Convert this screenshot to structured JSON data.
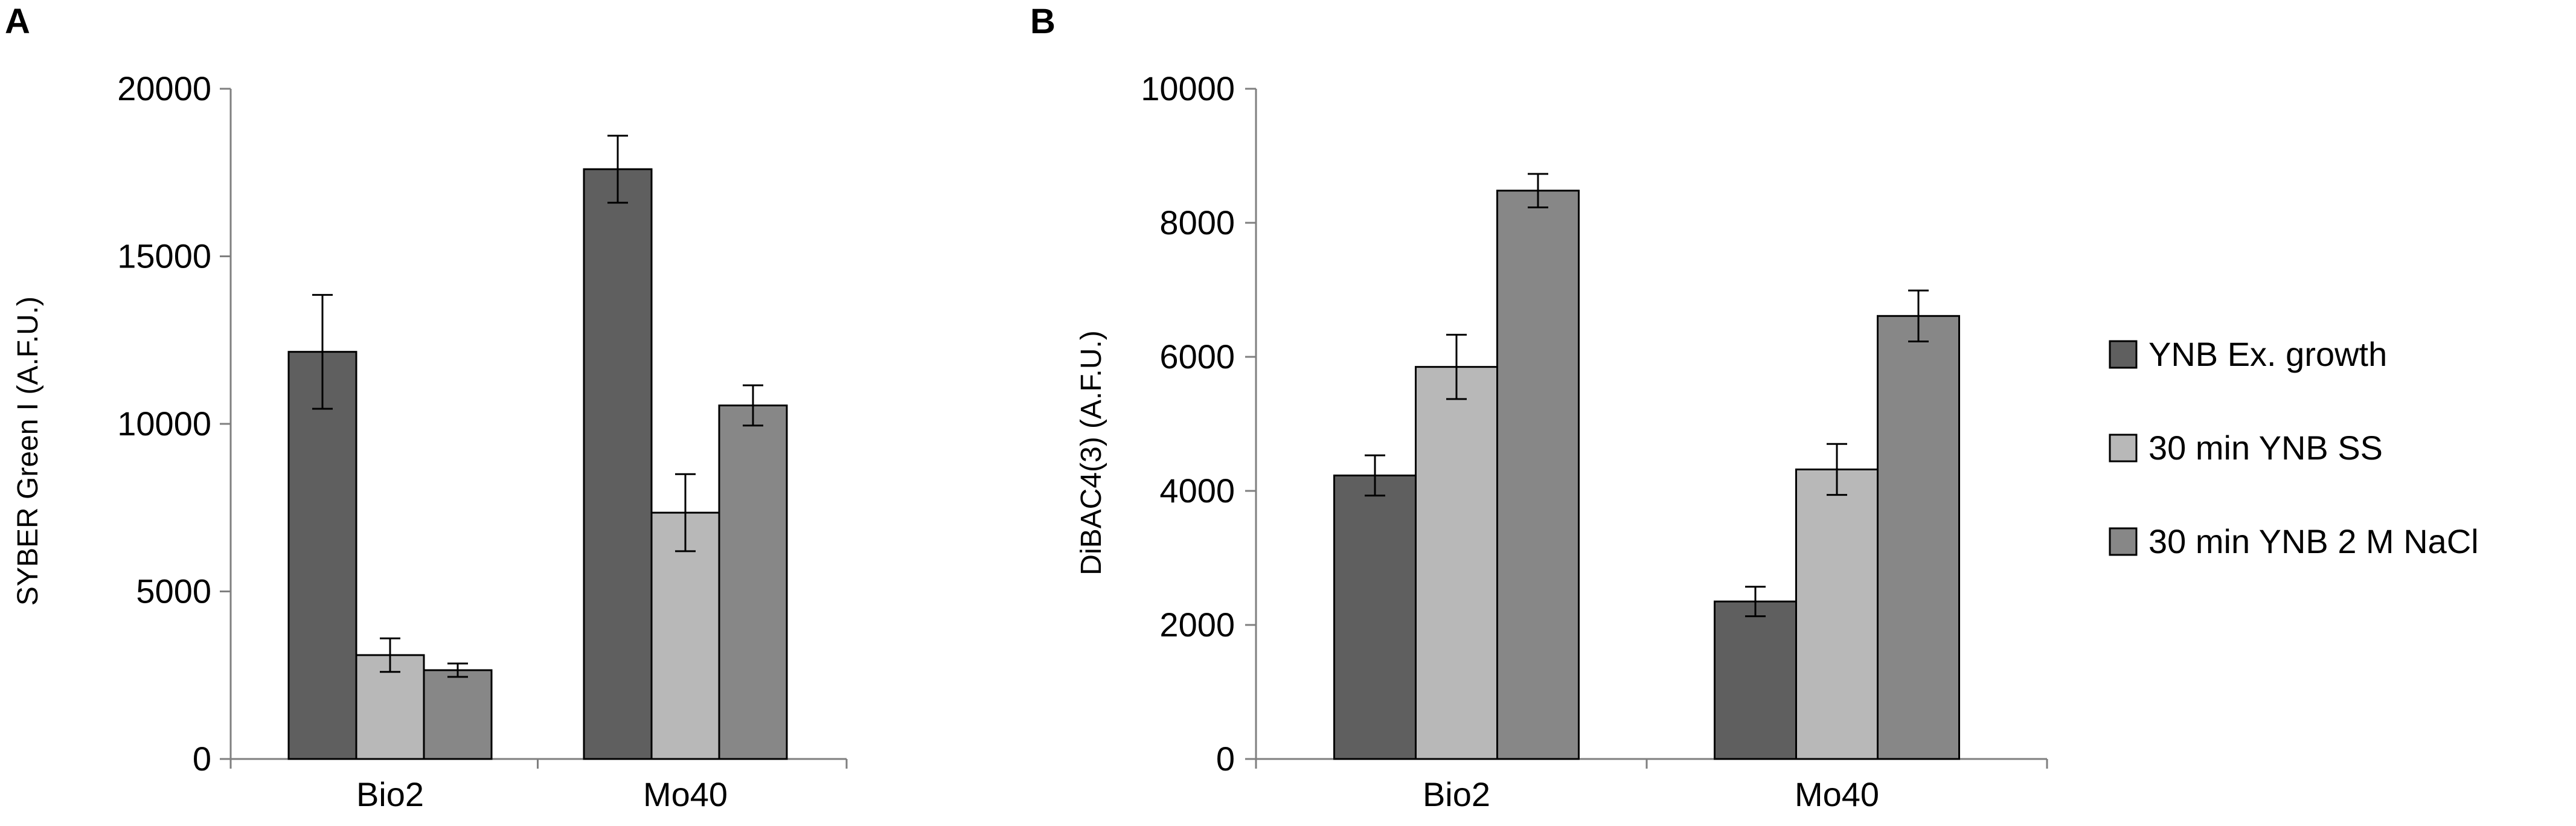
{
  "chart_data": [
    {
      "panel_label": "A",
      "type": "bar",
      "categories": [
        "Bio2",
        "Mo40"
      ],
      "series": [
        {
          "name": "YNB Ex. growth",
          "values": [
            12150,
            17600
          ],
          "errors": [
            1700,
            1000
          ]
        },
        {
          "name": "30 min YNB SS",
          "values": [
            3100,
            7350
          ],
          "errors": [
            500,
            1150
          ]
        },
        {
          "name": "30 min YNB 2 M NaCl",
          "values": [
            2650,
            10550
          ],
          "errors": [
            200,
            600
          ]
        }
      ],
      "ylabel": "SYBER Green I (A.F.U.)",
      "xlabel": "",
      "ylim": [
        0,
        20000
      ],
      "yticks": [
        "0",
        "5000",
        "10000",
        "15000",
        "20000"
      ],
      "grid": false,
      "legend": "none"
    },
    {
      "panel_label": "B",
      "type": "bar",
      "categories": [
        "Bio2",
        "Mo40"
      ],
      "series": [
        {
          "name": "YNB Ex. growth",
          "values": [
            4230,
            2350
          ],
          "errors": [
            300,
            220
          ]
        },
        {
          "name": "30 min YNB SS",
          "values": [
            5850,
            4320
          ],
          "errors": [
            480,
            380
          ]
        },
        {
          "name": "30 min YNB 2 M NaCl",
          "values": [
            8480,
            6610
          ],
          "errors": [
            250,
            380
          ]
        }
      ],
      "ylabel": "DiBAC4(3)  (A.F.U.)",
      "xlabel": "",
      "ylim": [
        0,
        10000
      ],
      "yticks": [
        "0",
        "2000",
        "4000",
        "6000",
        "8000",
        "10000"
      ],
      "grid": false,
      "legend": "right"
    }
  ],
  "legend": {
    "items": [
      {
        "label": "YNB Ex. growth",
        "color": "#5f5f5f"
      },
      {
        "label": "30 min YNB SS",
        "color": "#b8b8b8"
      },
      {
        "label": "30 min YNB 2 M NaCl",
        "color": "#878787"
      }
    ]
  },
  "colors": [
    "#5f5f5f",
    "#b8b8b8",
    "#878787"
  ],
  "error_bar_color": "#000000",
  "bar_outline_color": "#000000"
}
